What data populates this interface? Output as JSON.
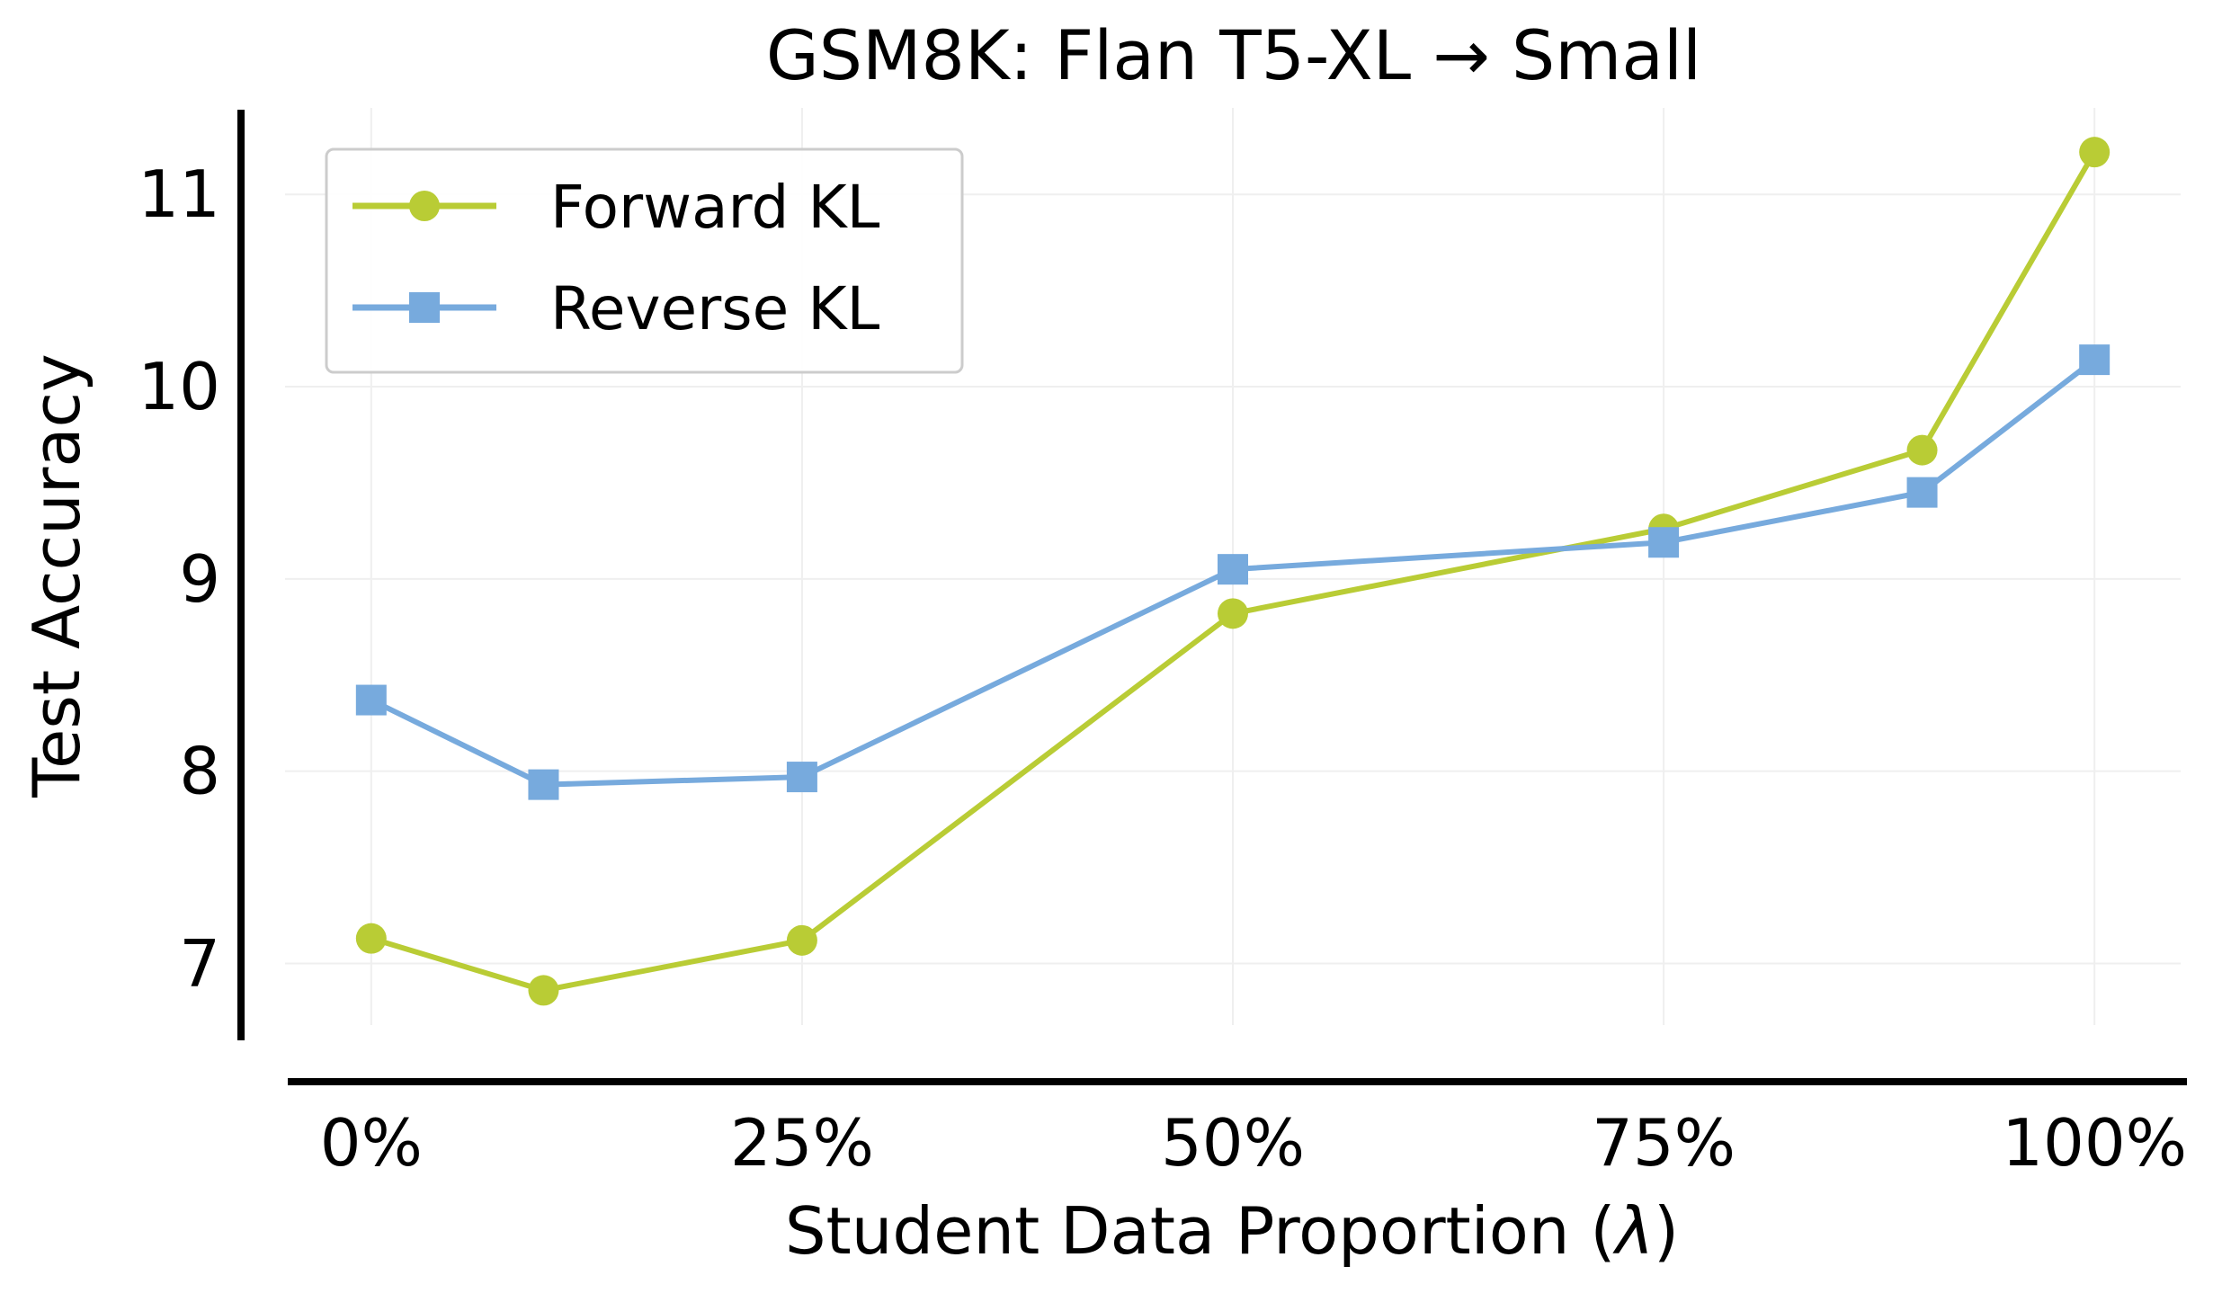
{
  "chart_data": {
    "type": "line",
    "title": "GSM8K: Flan T5-XL → Small",
    "xlabel_main": "Student Data Proportion (",
    "xlabel_symbol": "λ",
    "xlabel_end": ")",
    "ylabel": "Test Accuracy",
    "x": [
      0,
      10,
      25,
      50,
      75,
      90,
      100
    ],
    "xlim": [
      -5,
      105
    ],
    "ylim": [
      6.6,
      11.45
    ],
    "xticks": [
      {
        "value": 0,
        "label": "0%"
      },
      {
        "value": 25,
        "label": "25%"
      },
      {
        "value": 50,
        "label": "50%"
      },
      {
        "value": 75,
        "label": "75%"
      },
      {
        "value": 100,
        "label": "100%"
      }
    ],
    "yticks": [
      {
        "value": 7,
        "label": "7"
      },
      {
        "value": 8,
        "label": "8"
      },
      {
        "value": 9,
        "label": "9"
      },
      {
        "value": 10,
        "label": "10"
      },
      {
        "value": 11,
        "label": "11"
      }
    ],
    "grid": true,
    "legend_position": "top-left",
    "series": [
      {
        "name": "Forward KL",
        "marker": "circle",
        "color": "#b9cc35",
        "values": [
          7.13,
          6.86,
          7.12,
          8.82,
          9.26,
          9.67,
          11.22
        ]
      },
      {
        "name": "Reverse KL",
        "marker": "square",
        "color": "#77aadd",
        "values": [
          8.37,
          7.93,
          7.97,
          9.05,
          9.19,
          9.45,
          10.14
        ]
      }
    ]
  }
}
